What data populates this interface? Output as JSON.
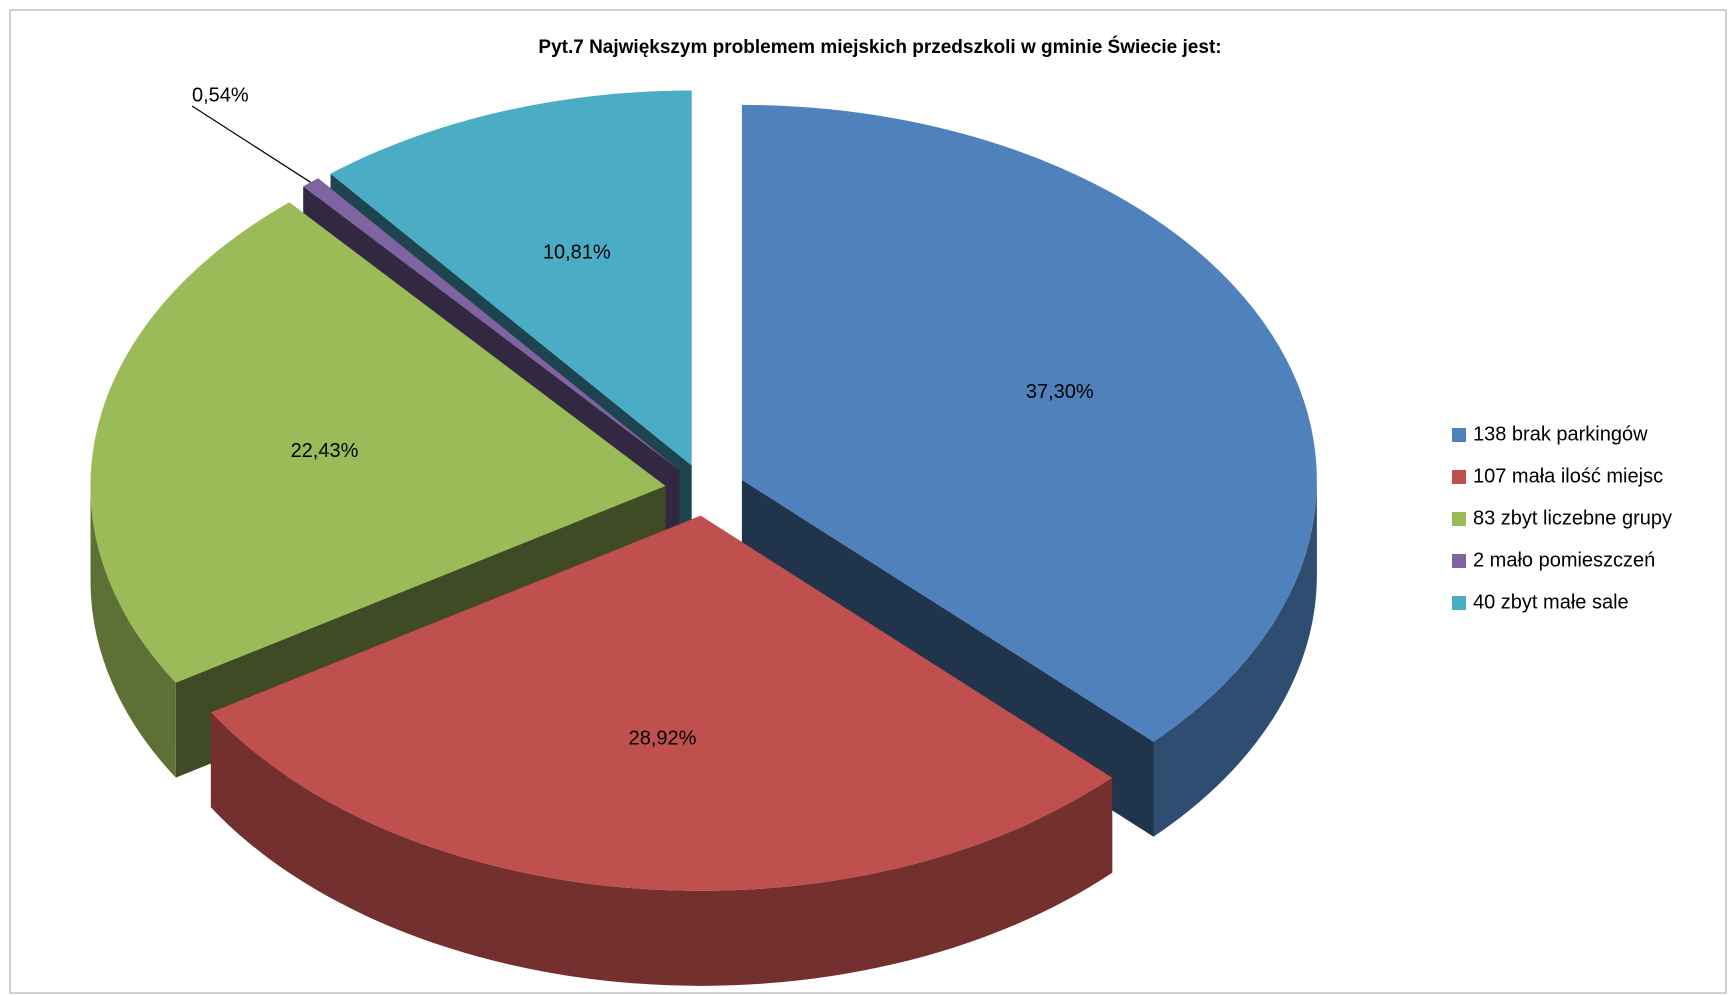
{
  "chart_data": {
    "type": "pie",
    "title": "Pyt.7 Największym problemem miejskich przedszkoli w gminie Świecie jest:",
    "categories": [
      "138 brak parkingów",
      "107 mała ilość miejsc",
      "83 zbyt liczebne grupy",
      "2 mało pomieszczeń",
      "40 zbyt małe sale"
    ],
    "values": [
      37.3,
      28.92,
      22.43,
      0.54,
      10.81
    ],
    "value_labels": [
      "37,30%",
      "28,92%",
      "22,43%",
      "0,54%",
      "10,81%"
    ],
    "colors": [
      "#4f81bd",
      "#c0504d",
      "#9bbb59",
      "#8064a2",
      "#4bacc6"
    ],
    "legend": "right"
  }
}
